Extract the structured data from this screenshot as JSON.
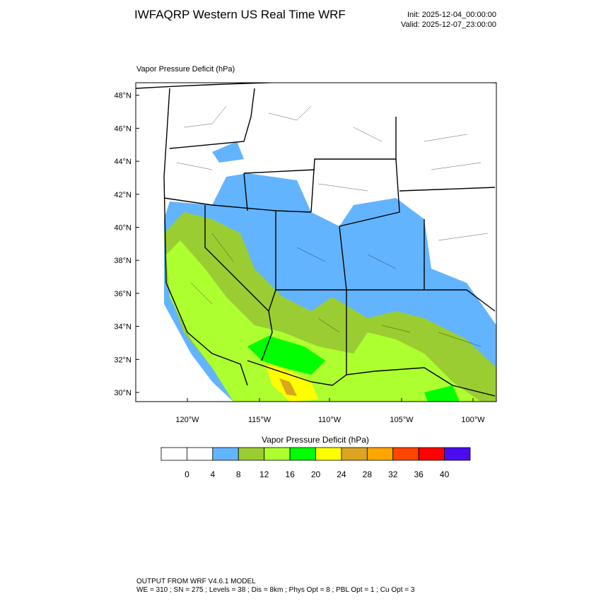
{
  "header": {
    "title": "IWFAQRP Western US Real Time WRF",
    "init": "Init: 2025-12-04_00:00:00",
    "valid": "Valid: 2025-12-07_23:00:00"
  },
  "map": {
    "field_label": "Vapor Pressure Deficit   (hPa)",
    "lat_labels": [
      "30°N",
      "32°N",
      "34°N",
      "36°N",
      "38°N",
      "40°N",
      "42°N",
      "44°N",
      "46°N",
      "48°N"
    ],
    "lon_labels": [
      "120°W",
      "115°W",
      "110°W",
      "105°W",
      "100°W"
    ]
  },
  "colorbar": {
    "title": "Vapor Pressure Deficit  (hPa)",
    "colors": [
      "#ffffff",
      "#ffffff",
      "#63b4ff",
      "#9acd32",
      "#adff2f",
      "#00ff00",
      "#ffff00",
      "#daa520",
      "#ffa500",
      "#ff4500",
      "#ff0000",
      "#4b0cf0"
    ],
    "labels": [
      0,
      4,
      8,
      12,
      16,
      20,
      24,
      28,
      32,
      36,
      40
    ]
  },
  "footer": {
    "line1": "OUTPUT FROM WRF V4.6.1 MODEL",
    "line2": "WE = 310 ; SN = 275 ; Levels = 38 ; Dis = 8km ; Phys Opt = 8 ; PBL Opt = 1 ; Cu Opt = 3"
  }
}
